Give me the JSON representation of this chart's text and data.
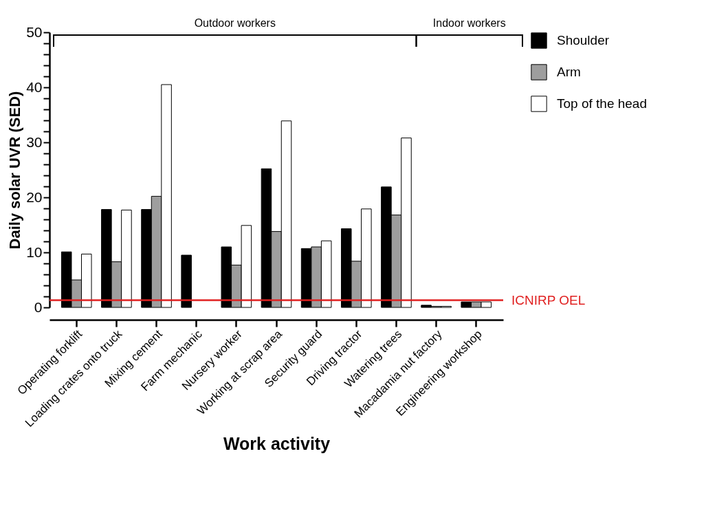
{
  "chart_data": {
    "type": "bar",
    "xlabel": "Work activity",
    "ylabel": "Daily solar UVR (SED)",
    "categories": [
      "Operating forklift",
      "Loading crates onto truck",
      "Mixing cement",
      "Farm mechanic",
      "Nursery worker",
      "Working at scrap area",
      "Security guard",
      "Driving tractor",
      "Watering trees",
      "Macadamia nut factory",
      "Engineering workshop"
    ],
    "series": [
      {
        "name": "Shoulder",
        "color": "#000000",
        "values": [
          10.1,
          17.8,
          17.8,
          9.5,
          11.0,
          25.2,
          10.7,
          14.3,
          21.9,
          0.4,
          1.0
        ]
      },
      {
        "name": "Arm",
        "color": "#9e9e9e",
        "values": [
          5.0,
          8.3,
          20.2,
          null,
          7.7,
          13.8,
          11.0,
          8.4,
          16.8,
          0.2,
          1.0
        ]
      },
      {
        "name": "Top of the head",
        "color": "#ffffff",
        "values": [
          9.7,
          17.7,
          40.5,
          null,
          14.9,
          33.9,
          12.1,
          17.9,
          30.8,
          0.2,
          1.0
        ]
      }
    ],
    "ylim": [
      0,
      50
    ],
    "yticks": [
      0,
      {
        "value": 2,
        "label": null
      },
      {
        "value": 4,
        "label": null
      },
      {
        "value": 6,
        "label": null
      },
      {
        "value": 8,
        "label": null
      },
      10,
      {
        "value": 12,
        "label": null
      },
      {
        "value": 14,
        "label": null
      },
      {
        "value": 16,
        "label": null
      },
      {
        "value": 18,
        "label": null
      },
      20,
      {
        "value": 22,
        "label": null
      },
      {
        "value": 24,
        "label": null
      },
      {
        "value": 26,
        "label": null
      },
      {
        "value": 28,
        "label": null
      },
      30,
      {
        "value": 32,
        "label": null
      },
      {
        "value": 34,
        "label": null
      },
      {
        "value": 36,
        "label": null
      },
      {
        "value": 38,
        "label": null
      },
      40,
      {
        "value": 42,
        "label": null
      },
      {
        "value": 44,
        "label": null
      },
      {
        "value": 46,
        "label": null
      },
      {
        "value": 48,
        "label": null
      },
      50
    ],
    "ref_lines": [
      {
        "axis": "y",
        "value": 1.3,
        "label": "ICNIRP OEL",
        "color": "#e02020"
      }
    ],
    "annotations": [
      "Outdoor workers",
      "Indoor workers"
    ],
    "legend": "top right",
    "grid": false
  }
}
